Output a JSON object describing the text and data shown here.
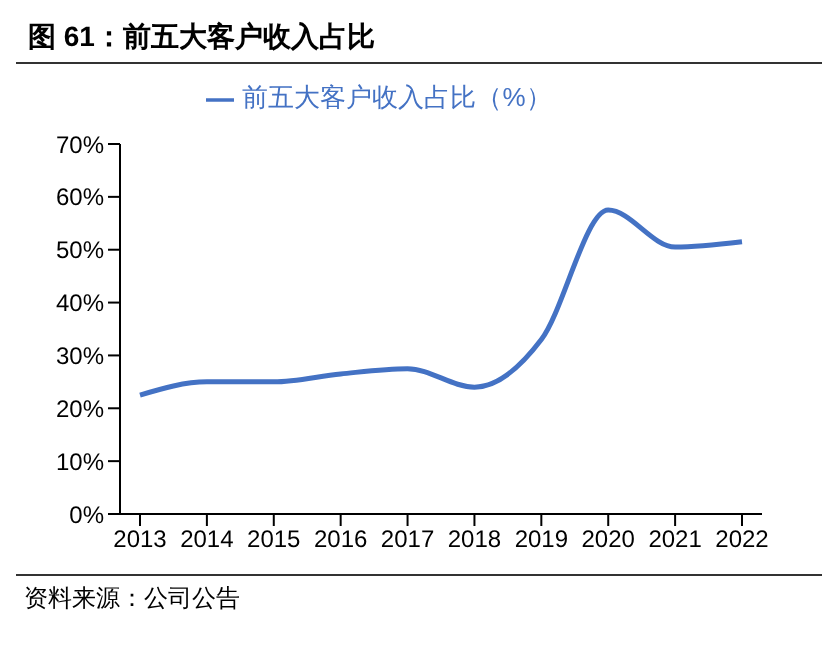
{
  "chart_data": {
    "type": "line",
    "title": "图 61：前五大客户收入占比",
    "categories": [
      "2013",
      "2014",
      "2015",
      "2016",
      "2017",
      "2018",
      "2019",
      "2020",
      "2021",
      "2022"
    ],
    "series": [
      {
        "name": "前五大客户收入占比（%）",
        "color": "#4472c4",
        "values": [
          22.5,
          25,
          25,
          26.5,
          27.5,
          24,
          33,
          57.5,
          50.5,
          51.5
        ]
      }
    ],
    "ylim": [
      0,
      70
    ],
    "yticks": [
      {
        "value": 0,
        "label": "0%"
      },
      {
        "value": 10,
        "label": "10%"
      },
      {
        "value": 20,
        "label": "20%"
      },
      {
        "value": 30,
        "label": "30%"
      },
      {
        "value": 40,
        "label": "40%"
      },
      {
        "value": 50,
        "label": "50%"
      },
      {
        "value": 60,
        "label": "60%"
      },
      {
        "value": 70,
        "label": "70%"
      }
    ],
    "grid": false,
    "legend": "top",
    "marker": "none",
    "line_style": "solid",
    "annotations": [
      "资料来源：公司公告"
    ]
  }
}
